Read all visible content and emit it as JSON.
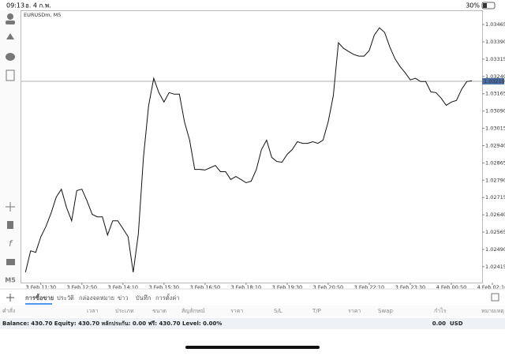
{
  "status_bar": {
    "time": "09:13",
    "date": "อ. 4 ก.พ.",
    "battery": "30%"
  },
  "toolbar": {
    "timeframe": "M5"
  },
  "chart_data": {
    "type": "line",
    "title": "EURUSDm, M5",
    "color": "#111111",
    "values": [
      1.02391,
      1.02484,
      1.02477,
      1.02545,
      1.0259,
      1.02648,
      1.02717,
      1.02751,
      1.02672,
      1.02614,
      1.02745,
      1.02751,
      1.027,
      1.02642,
      1.02631,
      1.02631,
      1.02552,
      1.02614,
      1.02614,
      1.0258,
      1.02545,
      1.02391,
      1.02556,
      1.02889,
      1.03112,
      1.03232,
      1.0317,
      1.03129,
      1.0317,
      1.03163,
      1.03163,
      1.03043,
      1.02964,
      1.02837,
      1.02837,
      1.02834,
      1.02844,
      1.02854,
      1.02827,
      1.02827,
      1.02793,
      1.02806,
      1.02793,
      1.02779,
      1.02786,
      1.02837,
      1.02923,
      1.02964,
      1.02889,
      1.02871,
      1.02868,
      1.02902,
      1.02923,
      1.02957,
      1.0295,
      1.0295,
      1.02957,
      1.0295,
      1.02964,
      1.03043,
      1.03156,
      1.03386,
      1.03362,
      1.03348,
      1.03335,
      1.03328,
      1.03328,
      1.03352,
      1.0342,
      1.03451,
      1.03431,
      1.03369,
      1.03317,
      1.03283,
      1.03256,
      1.03225,
      1.03232,
      1.03218,
      1.03218,
      1.03173,
      1.0317,
      1.03146,
      1.03115,
      1.03129,
      1.03136,
      1.03184,
      1.03218,
      1.03221
    ],
    "current_price": 1.03219,
    "xlim": [
      -0.5,
      89
    ],
    "xticks": [
      {
        "value": 3,
        "label": "3 Feb 11:30"
      },
      {
        "value": 11,
        "label": "3 Feb 12:50"
      },
      {
        "value": 19,
        "label": "3 Feb 14:10"
      },
      {
        "value": 27,
        "label": "3 Feb 15:30"
      },
      {
        "value": 35,
        "label": "3 Feb 16:50"
      },
      {
        "value": 43,
        "label": "3 Feb 18:10"
      },
      {
        "value": 51,
        "label": "3 Feb 19:30"
      },
      {
        "value": 59,
        "label": "3 Feb 20:50"
      },
      {
        "value": 67,
        "label": "3 Feb 22:10"
      },
      {
        "value": 75,
        "label": "3 Feb 23:30"
      },
      {
        "value": 83,
        "label": "4 Feb 00:50"
      },
      {
        "value": 91,
        "label": "4 Feb 02:10"
      }
    ],
    "ylim": [
      1.02346,
      1.03527
    ],
    "yticks": [
      1.03465,
      {
        "value": 1.0339,
        "label": "1.03390"
      },
      1.03315,
      {
        "value": 1.0324,
        "label": "1.03240"
      },
      1.03165,
      {
        "value": 1.0309,
        "label": "1.03090"
      },
      1.03015,
      {
        "value": 1.0294,
        "label": "1.02940"
      },
      1.02865,
      {
        "value": 1.0279,
        "label": "1.02790"
      },
      1.02715,
      {
        "value": 1.0264,
        "label": "1.02640"
      },
      1.02565,
      {
        "value": 1.0249,
        "label": "1.02490"
      },
      1.02415
    ]
  },
  "tabs": [
    "การซื้อขาย",
    "ประวัติ",
    "กล่องจดหมาย",
    "ข่าว",
    "บันทึก",
    "การตั้งค่า"
  ],
  "active_tab": 0,
  "table": {
    "headers": [
      "คำสั่ง",
      "เวลา",
      "ประเภท",
      "ขนาด",
      "สัญลักษณ์",
      "ราคา",
      "S/L",
      "T/P",
      "ราคา",
      "Swap",
      "กำไร",
      "หมายเหตุ"
    ]
  },
  "account": {
    "summary": "Balance: 430.70 Equity: 430.70 หลักประกัน: 0.00 ฟรี: 430.70 Level: 0.00%",
    "profit": "0.00",
    "currency": "USD"
  }
}
